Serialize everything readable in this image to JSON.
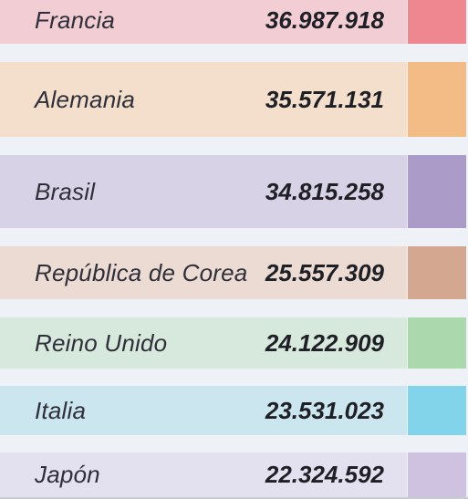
{
  "rows": [
    {
      "country": "Francia",
      "value": "36.987.918",
      "bg": "#f2cdd3",
      "swatch": "#ee8790"
    },
    {
      "country": "Alemania",
      "value": "35.571.131",
      "bg": "#f3dfcb",
      "swatch": "#f3bb86"
    },
    {
      "country": "Brasil",
      "value": "34.815.258",
      "bg": "#d8d2e6",
      "swatch": "#ab9bc8"
    },
    {
      "country": "República de Corea",
      "value": "25.557.309",
      "bg": "#ebdbd2",
      "swatch": "#d4a790"
    },
    {
      "country": "Reino Unido",
      "value": "24.122.909",
      "bg": "#d7e8dc",
      "swatch": "#acd8ae"
    },
    {
      "country": "Italia",
      "value": "23.531.023",
      "bg": "#cce6ef",
      "swatch": "#82d4eb"
    },
    {
      "country": "Japón",
      "value": "22.324.592",
      "bg": "#e3e0ef",
      "swatch": "#cec2e0"
    }
  ]
}
